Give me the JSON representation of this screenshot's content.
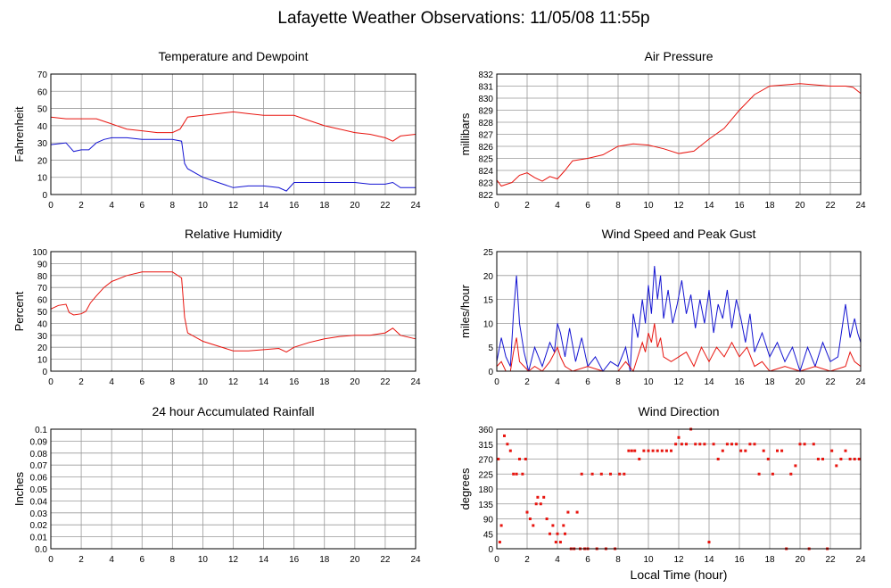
{
  "page_title": "Lafayette Weather Observations: 11/05/08 11:55p",
  "footer_xlabel": "Local Time (hour)",
  "colors": {
    "red": "#e8140e",
    "blue": "#1414d2",
    "grid": "#999999",
    "frame": "#000000"
  },
  "chart_data": [
    {
      "id": "temp",
      "type": "line",
      "title": "Temperature and Dewpoint",
      "xlabel": "",
      "ylabel": "Fahrenheit",
      "xlim": [
        0,
        24
      ],
      "ylim": [
        0,
        70
      ],
      "xticks": [
        0,
        2,
        4,
        6,
        8,
        10,
        12,
        14,
        16,
        18,
        20,
        22,
        24
      ],
      "yticks": [
        0,
        10,
        20,
        30,
        40,
        50,
        60,
        70
      ],
      "grid": true,
      "series": [
        {
          "color": "red",
          "x": [
            0,
            1,
            2,
            3,
            4,
            5,
            6,
            7,
            8,
            8.5,
            9,
            10,
            11,
            12,
            13,
            14,
            15,
            16,
            17,
            18,
            19,
            20,
            21,
            22,
            22.5,
            23,
            24
          ],
          "y": [
            45,
            44,
            44,
            44,
            41,
            38,
            37,
            36,
            36,
            38,
            45,
            46,
            47,
            48,
            47,
            46,
            46,
            46,
            43,
            40,
            38,
            36,
            35,
            33,
            31,
            34,
            35
          ]
        },
        {
          "color": "blue",
          "x": [
            0,
            1,
            1.5,
            2,
            2.5,
            3,
            3.5,
            4,
            5,
            6,
            7,
            8,
            8.6,
            8.8,
            9,
            10,
            11,
            12,
            13,
            14,
            15,
            15.5,
            16,
            17,
            18,
            19,
            20,
            21,
            22,
            22.5,
            23,
            24
          ],
          "y": [
            29,
            30,
            25,
            26,
            26,
            30,
            32,
            33,
            33,
            32,
            32,
            32,
            31,
            18,
            15,
            10,
            7,
            4,
            5,
            5,
            4,
            2,
            7,
            7,
            7,
            7,
            7,
            6,
            6,
            7,
            4,
            4
          ]
        }
      ]
    },
    {
      "id": "press",
      "type": "line",
      "title": "Air Pressure",
      "xlabel": "",
      "ylabel": "millibars",
      "xlim": [
        0,
        24
      ],
      "ylim": [
        822,
        832
      ],
      "xticks": [
        0,
        2,
        4,
        6,
        8,
        10,
        12,
        14,
        16,
        18,
        20,
        22,
        24
      ],
      "yticks": [
        822,
        823,
        824,
        825,
        826,
        827,
        828,
        829,
        830,
        831,
        832
      ],
      "grid": true,
      "series": [
        {
          "color": "red",
          "x": [
            0,
            0.3,
            1,
            1.5,
            2,
            2.5,
            3,
            3.5,
            4,
            4.5,
            5,
            6,
            7,
            8,
            9,
            10,
            11,
            12,
            13,
            14,
            15,
            16,
            17,
            18,
            19,
            20,
            21,
            22,
            23,
            23.5,
            24
          ],
          "y": [
            823.2,
            822.7,
            823.0,
            823.6,
            823.8,
            823.4,
            823.1,
            823.5,
            823.3,
            824.0,
            824.8,
            825.0,
            825.3,
            826.0,
            826.2,
            826.1,
            825.8,
            825.4,
            825.6,
            826.6,
            827.5,
            829.0,
            830.3,
            831.0,
            831.1,
            831.2,
            831.1,
            831.0,
            831.0,
            830.9,
            830.4
          ]
        }
      ]
    },
    {
      "id": "rh",
      "type": "line",
      "title": "Relative Humidity",
      "xlabel": "",
      "ylabel": "Percent",
      "xlim": [
        0,
        24
      ],
      "ylim": [
        0,
        100
      ],
      "xticks": [
        0,
        2,
        4,
        6,
        8,
        10,
        12,
        14,
        16,
        18,
        20,
        22,
        24
      ],
      "yticks": [
        0,
        10,
        20,
        30,
        40,
        50,
        60,
        70,
        80,
        90,
        100
      ],
      "grid": true,
      "series": [
        {
          "color": "red",
          "x": [
            0,
            0.5,
            1,
            1.2,
            1.5,
            2,
            2.3,
            2.6,
            3,
            3.5,
            4,
            5,
            6,
            7,
            8,
            8.6,
            8.8,
            9,
            10,
            11,
            12,
            13,
            14,
            15,
            15.5,
            16,
            17,
            18,
            19,
            20,
            21,
            22,
            22.5,
            23,
            24
          ],
          "y": [
            52,
            55,
            56,
            49,
            47,
            48,
            50,
            57,
            63,
            70,
            75,
            80,
            83,
            83,
            83,
            78,
            45,
            32,
            25,
            21,
            17,
            17,
            18,
            19,
            16,
            20,
            24,
            27,
            29,
            30,
            30,
            32,
            36,
            30,
            27
          ]
        }
      ]
    },
    {
      "id": "wind",
      "type": "line",
      "title": "Wind Speed and Peak Gust",
      "xlabel": "",
      "ylabel": "miles/hour",
      "xlim": [
        0,
        24
      ],
      "ylim": [
        0,
        25
      ],
      "xticks": [
        0,
        2,
        4,
        6,
        8,
        10,
        12,
        14,
        16,
        18,
        20,
        22,
        24
      ],
      "yticks": [
        0,
        5,
        10,
        15,
        20,
        25
      ],
      "grid": true,
      "series": [
        {
          "color": "blue",
          "x": [
            0,
            0.3,
            0.6,
            0.9,
            1.1,
            1.3,
            1.5,
            1.8,
            2.1,
            2.5,
            3.0,
            3.5,
            3.8,
            4.0,
            4.2,
            4.5,
            4.8,
            5.2,
            5.6,
            6.0,
            6.5,
            7.0,
            7.5,
            8.0,
            8.5,
            8.8,
            9.0,
            9.3,
            9.6,
            9.8,
            10.0,
            10.2,
            10.4,
            10.6,
            10.8,
            11.0,
            11.3,
            11.6,
            11.9,
            12.2,
            12.5,
            12.8,
            13.1,
            13.4,
            13.7,
            14.0,
            14.3,
            14.6,
            14.9,
            15.2,
            15.5,
            15.8,
            16.1,
            16.4,
            16.7,
            17.0,
            17.5,
            18.0,
            18.5,
            19.0,
            19.5,
            20.0,
            20.5,
            21.0,
            21.5,
            22.0,
            22.5,
            23.0,
            23.3,
            23.6,
            23.8,
            24.0
          ],
          "y": [
            2,
            7,
            3,
            1,
            12,
            20,
            10,
            4,
            0,
            5,
            1,
            6,
            4,
            10,
            8,
            3,
            9,
            2,
            7,
            1,
            3,
            0,
            2,
            1,
            5,
            0,
            12,
            7,
            15,
            10,
            18,
            12,
            22,
            15,
            20,
            11,
            17,
            10,
            14,
            19,
            12,
            16,
            9,
            15,
            10,
            17,
            8,
            14,
            11,
            17,
            9,
            15,
            11,
            6,
            12,
            4,
            8,
            3,
            6,
            2,
            5,
            0,
            5,
            1,
            6,
            2,
            3,
            14,
            7,
            11,
            8,
            6
          ]
        },
        {
          "color": "red",
          "x": [
            0,
            0.3,
            0.6,
            0.9,
            1.1,
            1.3,
            1.5,
            1.8,
            2.1,
            2.5,
            3.0,
            3.5,
            4.0,
            4.2,
            4.5,
            5.0,
            6.0,
            7.0,
            8.0,
            8.5,
            9.0,
            9.3,
            9.6,
            9.8,
            10.0,
            10.2,
            10.4,
            10.6,
            10.8,
            11.0,
            11.5,
            12.0,
            12.5,
            13.0,
            13.5,
            14.0,
            14.5,
            15.0,
            15.5,
            16.0,
            16.5,
            17.0,
            17.5,
            18.0,
            19.0,
            20.0,
            21.0,
            22.0,
            23.0,
            23.3,
            23.6,
            24.0
          ],
          "y": [
            1,
            2,
            0,
            0,
            4,
            7,
            2,
            1,
            0,
            1,
            0,
            2,
            5,
            3,
            1,
            0,
            1,
            0,
            0,
            2,
            0,
            3,
            6,
            4,
            8,
            6,
            10,
            5,
            7,
            3,
            2,
            3,
            4,
            1,
            5,
            2,
            5,
            3,
            6,
            3,
            5,
            1,
            2,
            0,
            1,
            0,
            1,
            0,
            1,
            4,
            2,
            1
          ]
        }
      ]
    },
    {
      "id": "rain",
      "type": "line",
      "title": "24 hour Accumulated Rainfall",
      "xlabel": "",
      "ylabel": "Inches",
      "xlim": [
        0,
        24
      ],
      "ylim": [
        0,
        0.1
      ],
      "xticks": [
        0,
        2,
        4,
        6,
        8,
        10,
        12,
        14,
        16,
        18,
        20,
        22,
        24
      ],
      "yticks": [
        "0.0",
        "0.01",
        "0.02",
        "0.03",
        "0.04",
        "0.05",
        "0.06",
        "0.07",
        "0.08",
        "0.09",
        "0.1"
      ],
      "grid": true,
      "series": [
        {
          "color": "red",
          "x": [
            0,
            24
          ],
          "y": [
            0,
            0
          ]
        }
      ]
    },
    {
      "id": "dir",
      "type": "scatter",
      "title": "Wind Direction",
      "xlabel": "Local Time (hour)",
      "ylabel": "degrees",
      "xlim": [
        0,
        24
      ],
      "ylim": [
        0,
        360
      ],
      "xticks": [
        0,
        2,
        4,
        6,
        8,
        10,
        12,
        14,
        16,
        18,
        20,
        22,
        24
      ],
      "yticks": [
        0,
        45,
        90,
        135,
        180,
        225,
        270,
        315,
        360
      ],
      "grid": true,
      "series": [
        {
          "color": "red",
          "x": [
            0.1,
            0.2,
            0.3,
            0.5,
            0.7,
            0.9,
            1.1,
            1.3,
            1.5,
            1.7,
            1.9,
            2.0,
            2.2,
            2.4,
            2.6,
            2.7,
            2.9,
            3.1,
            3.3,
            3.5,
            3.7,
            3.9,
            4.0,
            4.2,
            4.4,
            4.5,
            4.7,
            4.9,
            5.1,
            5.3,
            5.5,
            5.6,
            5.8,
            6.0,
            6.3,
            6.6,
            6.9,
            7.2,
            7.5,
            7.8,
            8.1,
            8.4,
            8.7,
            8.9,
            9.1,
            9.4,
            9.7,
            10.0,
            10.3,
            10.6,
            10.9,
            11.2,
            11.5,
            11.8,
            12.0,
            12.2,
            12.5,
            12.8,
            13.1,
            13.4,
            13.7,
            14.0,
            14.3,
            14.6,
            14.9,
            15.2,
            15.5,
            15.8,
            16.1,
            16.4,
            16.7,
            17.0,
            17.3,
            17.6,
            17.9,
            18.2,
            18.5,
            18.8,
            19.1,
            19.4,
            19.7,
            20.0,
            20.3,
            20.6,
            20.9,
            21.2,
            21.5,
            21.8,
            22.1,
            22.4,
            22.7,
            23.0,
            23.3,
            23.6,
            23.9
          ],
          "y": [
            270,
            20,
            70,
            340,
            315,
            295,
            225,
            225,
            270,
            225,
            270,
            110,
            90,
            70,
            135,
            155,
            135,
            155,
            90,
            45,
            70,
            20,
            45,
            20,
            70,
            45,
            110,
            0,
            0,
            110,
            0,
            225,
            0,
            0,
            225,
            0,
            225,
            0,
            225,
            0,
            225,
            225,
            295,
            295,
            295,
            270,
            295,
            295,
            295,
            295,
            295,
            295,
            295,
            315,
            335,
            315,
            315,
            360,
            315,
            315,
            315,
            20,
            315,
            270,
            295,
            315,
            315,
            315,
            295,
            295,
            315,
            315,
            225,
            295,
            270,
            225,
            295,
            295,
            0,
            225,
            250,
            315,
            315,
            0,
            315,
            270,
            270,
            0,
            295,
            250,
            270,
            295,
            270,
            270,
            270
          ]
        }
      ]
    }
  ]
}
